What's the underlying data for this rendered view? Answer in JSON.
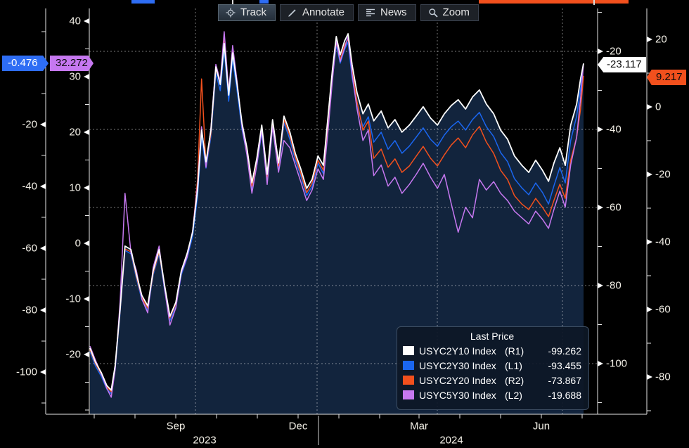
{
  "toolbar": {
    "buttons": [
      {
        "label": "Track",
        "icon": "crosshair-icon",
        "active": true
      },
      {
        "label": "Annotate",
        "icon": "pencil-icon",
        "active": false
      },
      {
        "label": "News",
        "icon": "news-lines-icon",
        "active": false
      },
      {
        "label": "Zoom",
        "icon": "magnifier-icon",
        "active": false
      }
    ]
  },
  "axis_tags": [
    {
      "id": "tag-l1",
      "axis": "L1",
      "value": "-0.476",
      "bg": "#2e6df4",
      "fg": "#ffffff"
    },
    {
      "id": "tag-l2",
      "axis": "L2",
      "value": "32.272",
      "bg": "#c678f0",
      "fg": "#0a0a0a"
    },
    {
      "id": "tag-r1",
      "axis": "R1",
      "value": "-23.117",
      "bg": "#ffffff",
      "fg": "#0a0a0a"
    },
    {
      "id": "tag-r2",
      "axis": "R2",
      "value": "9.217",
      "bg": "#f2501d",
      "fg": "#0a0a0a"
    }
  ],
  "legend": {
    "title": "Last Price",
    "rows": [
      {
        "name": "USYC2Y10 Index",
        "axis": "(R1)",
        "value": "-99.262",
        "color": "#ffffff"
      },
      {
        "name": "USYC2Y30 Index",
        "axis": "(L1)",
        "value": "-93.455",
        "color": "#1a66f0"
      },
      {
        "name": "USYC2Y20 Index",
        "axis": "(R2)",
        "value": "-73.867",
        "color": "#f2501d"
      },
      {
        "name": "USYC5Y30 Index",
        "axis": "(L2)",
        "value": "-19.688",
        "color": "#c678f0"
      }
    ]
  },
  "chart_data": {
    "type": "line",
    "x_axis": {
      "months": [
        "Sep",
        "Dec",
        "Mar",
        "Jun"
      ],
      "years": [
        "2023",
        "2024"
      ],
      "range": "Jul 2023 - Jul 2024"
    },
    "axes_ticks": {
      "L1": [
        "-20",
        "-40",
        "-60",
        "-80",
        "-100"
      ],
      "L2": [
        "40",
        "30",
        "20",
        "10",
        "0",
        "-10",
        "-20"
      ],
      "R1": [
        "-20",
        "-40",
        "-60",
        "-80",
        "-100"
      ],
      "R2": [
        "20",
        "0",
        "-20",
        "-40",
        "-60",
        "-80"
      ]
    },
    "grid": {
      "horizontal_dotted": true,
      "vertical_dotted": true,
      "v_grid_quarters": [
        "Oct 2023",
        "Jan 2024",
        "Apr 2024",
        "Jul 2024"
      ]
    },
    "t": [
      0.0,
      0.011,
      0.023,
      0.034,
      0.043,
      0.051,
      0.061,
      0.071,
      0.083,
      0.094,
      0.105,
      0.117,
      0.128,
      0.14,
      0.151,
      0.162,
      0.174,
      0.185,
      0.197,
      0.208,
      0.218,
      0.226,
      0.235,
      0.245,
      0.255,
      0.264,
      0.272,
      0.281,
      0.289,
      0.298,
      0.308,
      0.318,
      0.328,
      0.338,
      0.348,
      0.359,
      0.37,
      0.382,
      0.393,
      0.405,
      0.416,
      0.427,
      0.439,
      0.45,
      0.462,
      0.473,
      0.483,
      0.491,
      0.499,
      0.507,
      0.516,
      0.523,
      0.531,
      0.541,
      0.553,
      0.564,
      0.575,
      0.59,
      0.604,
      0.618,
      0.632,
      0.647,
      0.661,
      0.675,
      0.69,
      0.704,
      0.718,
      0.732,
      0.746,
      0.761,
      0.775,
      0.789,
      0.803,
      0.818,
      0.832,
      0.846,
      0.86,
      0.875,
      0.889,
      0.903,
      0.917,
      0.929,
      0.94,
      0.952,
      0.963,
      0.974,
      0.986,
      0.994,
      1.0
    ],
    "series": [
      {
        "name": "USYC2Y10 Index",
        "axis": "R1",
        "color": "#ffffff",
        "last_price": -99.262,
        "end_tag": -23.117,
        "area_fill": "#12243d",
        "values": [
          -96.0,
          -99.6,
          -102.3,
          -105.6,
          -106.8,
          -100.5,
          -86.1,
          -69.9,
          -70.8,
          -77.1,
          -82.5,
          -85.2,
          -76.2,
          -70.8,
          -79.8,
          -87.9,
          -84.3,
          -76.2,
          -71.7,
          -66.3,
          -55.5,
          -40.2,
          -48.3,
          -40.2,
          -24.0,
          -28.5,
          -18.0,
          -31.2,
          -20.4,
          -28.5,
          -38.4,
          -44.7,
          -53.7,
          -47.4,
          -38.9,
          -51.5,
          -37.5,
          -48.6,
          -36.6,
          -40.7,
          -46.1,
          -50.1,
          -55.1,
          -52.8,
          -46.8,
          -49.2,
          -35.7,
          -24.9,
          -16.2,
          -20.9,
          -17.3,
          -15.5,
          -23.4,
          -30.6,
          -36.0,
          -33.5,
          -37.8,
          -35.3,
          -39.6,
          -37.5,
          -40.7,
          -38.9,
          -36.6,
          -34.2,
          -37.1,
          -38.9,
          -36.0,
          -33.9,
          -32.4,
          -34.8,
          -31.7,
          -29.9,
          -33.5,
          -36.0,
          -40.2,
          -42.5,
          -46.8,
          -49.2,
          -51.0,
          -47.9,
          -50.5,
          -53.3,
          -48.6,
          -44.7,
          -49.2,
          -38.9,
          -33.5,
          -27.0,
          -23.1
        ]
      },
      {
        "name": "USYC2Y30 Index",
        "axis": "L1",
        "color": "#1a66f0",
        "last_price": -93.455,
        "end_tag": -0.476,
        "values": [
          -93.4,
          -98.0,
          -101.4,
          -105.5,
          -107.0,
          -99.1,
          -80.9,
          -60.7,
          -61.8,
          -69.8,
          -76.6,
          -80.0,
          -68.6,
          -61.8,
          -73.2,
          -83.4,
          -78.9,
          -68.6,
          -63.0,
          -56.1,
          -43.2,
          -23.9,
          -34.1,
          -23.9,
          -3.4,
          -9.1,
          4.1,
          -12.5,
          1.1,
          -9.1,
          -21.6,
          -29.5,
          -41.1,
          -33.2,
          -22.5,
          -38.4,
          -20.7,
          -34.8,
          -19.5,
          -24.8,
          -31.6,
          -36.6,
          -43.0,
          -40.0,
          -32.5,
          -35.9,
          -18.9,
          -5.2,
          5.7,
          -0.2,
          4.3,
          6.6,
          -4.8,
          -13.9,
          -20.7,
          -17.5,
          -25.7,
          -22.5,
          -28.0,
          -25.2,
          -29.3,
          -27.0,
          -24.1,
          -21.1,
          -24.8,
          -27.0,
          -23.4,
          -20.7,
          -18.9,
          -21.8,
          -18.4,
          -16.1,
          -20.7,
          -23.9,
          -29.1,
          -32.0,
          -37.5,
          -40.5,
          -42.7,
          -38.9,
          -42.0,
          -45.7,
          -39.8,
          -33.9,
          -38.9,
          -25.2,
          -17.3,
          -8.2,
          -0.5
        ]
      },
      {
        "name": "USYC2Y20 Index",
        "axis": "R2",
        "color": "#f2501d",
        "last_price": -73.867,
        "end_tag": 9.217,
        "values": [
          -71.9,
          -76.0,
          -79.2,
          -82.9,
          -84.4,
          -77.1,
          -60.4,
          -42.1,
          -42.9,
          -50.2,
          -56.5,
          -59.6,
          -49.2,
          -42.9,
          -53.3,
          -62.5,
          -58.3,
          -49.0,
          -43.8,
          -37.1,
          -21.5,
          8.3,
          -17.3,
          -7.9,
          11.3,
          7.1,
          20.2,
          4.6,
          17.1,
          7.1,
          -5.4,
          -13.1,
          -23.5,
          -15.8,
          -6.3,
          -20.8,
          -4.8,
          -17.5,
          -3.8,
          -8.5,
          -14.8,
          -19.6,
          -25.4,
          -22.5,
          -15.8,
          -18.8,
          -3.3,
          9.2,
          19.2,
          14.0,
          18.3,
          20.2,
          10.8,
          1.5,
          -6.9,
          -4.2,
          -15.2,
          -12.5,
          -17.9,
          -15.4,
          -19.4,
          -17.5,
          -14.6,
          -11.7,
          -15.2,
          -17.5,
          -14.2,
          -11.3,
          -9.2,
          -12.1,
          -8.3,
          -5.8,
          -10.4,
          -13.8,
          -18.8,
          -21.5,
          -26.3,
          -28.8,
          -30.4,
          -27.1,
          -29.8,
          -32.5,
          -27.7,
          -22.9,
          -27.1,
          -15.8,
          -9.0,
          -0.6,
          9.2
        ]
      },
      {
        "name": "USYC5Y30 Index",
        "axis": "L2",
        "color": "#c678f0",
        "last_price": -19.688,
        "end_tag": 32.272,
        "values": [
          -18.5,
          -21.0,
          -23.5,
          -26.1,
          -27.7,
          -22.7,
          -10.6,
          9.0,
          -1.8,
          -4.9,
          -10.0,
          -12.5,
          -4.3,
          -0.5,
          -8.1,
          -14.7,
          -11.6,
          -5.3,
          -2.4,
          2.3,
          10.6,
          21.0,
          13.7,
          20.8,
          32.2,
          29.2,
          38.1,
          27.3,
          35.6,
          29.2,
          21.0,
          15.9,
          9.0,
          14.1,
          20.4,
          10.6,
          21.0,
          12.8,
          18.5,
          17.2,
          14.1,
          11.1,
          7.7,
          9.6,
          13.4,
          11.5,
          21.0,
          29.2,
          36.5,
          32.7,
          35.2,
          37.2,
          30.5,
          24.2,
          18.5,
          20.4,
          12.2,
          14.1,
          10.3,
          11.9,
          9.0,
          10.6,
          12.4,
          14.4,
          11.9,
          9.9,
          12.4,
          7.1,
          2.0,
          6.5,
          4.6,
          11.5,
          9.6,
          11.1,
          9.0,
          7.7,
          5.8,
          4.6,
          3.5,
          5.8,
          4.3,
          2.7,
          6.1,
          9.4,
          6.5,
          14.1,
          19.1,
          26.1,
          32.3
        ]
      }
    ]
  }
}
